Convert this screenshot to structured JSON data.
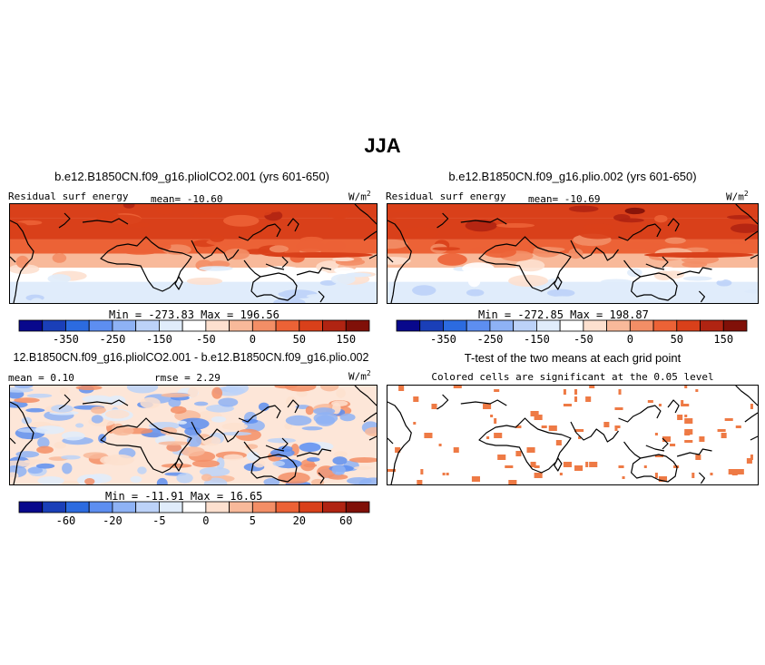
{
  "title": "JJA",
  "panels": [
    {
      "id": "case1",
      "title": "b.e12.B1850CN.f09_g16.pliolCO2.001 (yrs 601-650)",
      "left_label": "Residual surf energy",
      "stat_label": "mean=",
      "stat_value": "-10.60",
      "units_base": "W/m",
      "units_exp": "2",
      "minmax": "Min = -273.83 Max = 196.56",
      "colorbar_labels": [
        "-350",
        "-250",
        "-150",
        "-50",
        "0",
        "50",
        "150"
      ]
    },
    {
      "id": "case2",
      "title": "b.e12.B1850CN.f09_g16.plio.002 (yrs 601-650)",
      "left_label": "Residual surf energy",
      "stat_label": "mean=",
      "stat_value": "-10.69",
      "units_base": "W/m",
      "units_exp": "2",
      "minmax": "Min = -272.85 Max = 198.87",
      "colorbar_labels": [
        "-350",
        "-250",
        "-150",
        "-50",
        "0",
        "50",
        "150"
      ]
    },
    {
      "id": "diff",
      "title": "12.B1850CN.f09_g16.pliolCO2.001 - b.e12.B1850CN.f09_g16.plio.002",
      "mean_label": "mean =",
      "mean_value": "0.10",
      "rmse_label": "rmse =",
      "rmse_value": "2.29",
      "units_base": "W/m",
      "units_exp": "2",
      "minmax": "Min = -11.91 Max = 16.65",
      "colorbar_labels": [
        "-60",
        "-20",
        "-5",
        "0",
        "5",
        "20",
        "60"
      ]
    },
    {
      "id": "ttest",
      "title": "T-test of the two means at each grid point",
      "subtitle": "Colored cells are significant at the 0.05 level"
    }
  ],
  "colors": {
    "palette": [
      "#08088c",
      "#1a3fb8",
      "#2c6be0",
      "#5d8ef0",
      "#8eb2f5",
      "#bcd2f8",
      "#e0ecfb",
      "#ffffff",
      "#fde0cf",
      "#f8b99a",
      "#f38e66",
      "#ec6236",
      "#d9401a",
      "#b02412",
      "#801008"
    ],
    "significant": "#ee7a45"
  },
  "chart_data": [
    {
      "type": "heatmap",
      "title": "b.e12.B1850CN.f09_g16.pliolCO2.001 (yrs 601-650)",
      "variable": "Residual surf energy",
      "units": "W/m2",
      "mean": -10.6,
      "min": -273.83,
      "max": 196.56,
      "colorbar_ticks": [
        -350,
        -250,
        -150,
        -50,
        0,
        50,
        150
      ],
      "zonal_bands": [
        {
          "lat_range": [
            60,
            80
          ],
          "value": 150
        },
        {
          "lat_range": [
            30,
            60
          ],
          "value": 120
        },
        {
          "lat_range": [
            10,
            30
          ],
          "value": 70
        },
        {
          "lat_range": [
            -10,
            10
          ],
          "value": 20
        },
        {
          "lat_range": [
            -30,
            -10
          ],
          "value": -40
        },
        {
          "lat_range": [
            -60,
            -30
          ],
          "value": -90
        }
      ]
    },
    {
      "type": "heatmap",
      "title": "b.e12.B1850CN.f09_g16.plio.002 (yrs 601-650)",
      "variable": "Residual surf energy",
      "units": "W/m2",
      "mean": -10.69,
      "min": -272.85,
      "max": 198.87,
      "colorbar_ticks": [
        -350,
        -250,
        -150,
        -50,
        0,
        50,
        150
      ],
      "zonal_bands": [
        {
          "lat_range": [
            60,
            80
          ],
          "value": 150
        },
        {
          "lat_range": [
            30,
            60
          ],
          "value": 120
        },
        {
          "lat_range": [
            10,
            30
          ],
          "value": 70
        },
        {
          "lat_range": [
            -10,
            10
          ],
          "value": 20
        },
        {
          "lat_range": [
            -30,
            -10
          ],
          "value": -40
        },
        {
          "lat_range": [
            -60,
            -30
          ],
          "value": -90
        }
      ]
    },
    {
      "type": "heatmap",
      "title": "12.B1850CN.f09_g16.pliolCO2.001 - b.e12.B1850CN.f09_g16.plio.002",
      "units": "W/m2",
      "mean": 0.1,
      "rmse": 2.29,
      "min": -11.91,
      "max": 16.65,
      "colorbar_ticks": [
        -60,
        -20,
        -5,
        0,
        5,
        20,
        60
      ]
    },
    {
      "type": "heatmap",
      "title": "T-test of the two means at each grid point",
      "significance_level": 0.05
    }
  ]
}
